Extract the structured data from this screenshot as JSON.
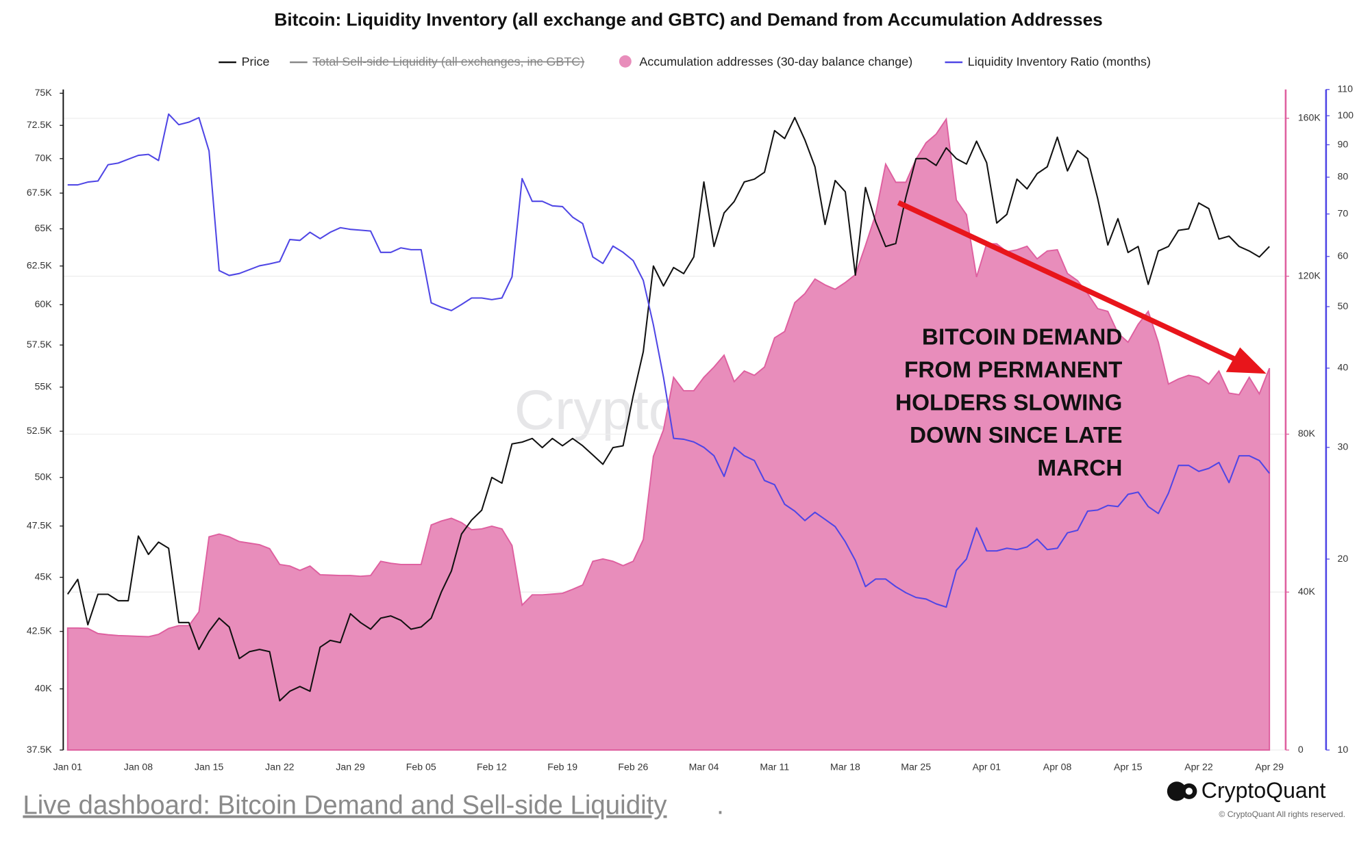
{
  "chart_data": {
    "type": "line",
    "title": "Bitcoin: Liquidity Inventory (all exchange and GBTC) and Demand from Accumulation Addresses",
    "categories": [
      "Jan 01",
      null,
      null,
      null,
      null,
      null,
      null,
      "Jan 08",
      null,
      null,
      null,
      null,
      null,
      null,
      "Jan 15",
      null,
      null,
      null,
      null,
      null,
      null,
      "Jan 22",
      null,
      null,
      null,
      null,
      null,
      null,
      "Jan 29",
      null,
      null,
      null,
      null,
      null,
      null,
      "Feb 05",
      null,
      null,
      null,
      null,
      null,
      null,
      "Feb 12",
      null,
      null,
      null,
      null,
      null,
      null,
      "Feb 19",
      null,
      null,
      null,
      null,
      null,
      null,
      "Feb 26",
      null,
      null,
      null,
      null,
      null,
      null,
      "Mar 04",
      null,
      null,
      null,
      null,
      null,
      null,
      "Mar 11",
      null,
      null,
      null,
      null,
      null,
      null,
      "Mar 18",
      null,
      null,
      null,
      null,
      null,
      null,
      "Mar 25",
      null,
      null,
      null,
      null,
      null,
      null,
      "Apr 01",
      null,
      null,
      null,
      null,
      null,
      null,
      "Apr 08",
      null,
      null,
      null,
      null,
      null,
      null,
      "Apr 15",
      null,
      null,
      null,
      null,
      null,
      null,
      "Apr 22",
      null,
      null,
      null,
      null,
      null,
      null,
      "Apr 29"
    ],
    "series": [
      {
        "name": "Price",
        "type": "line",
        "axis": "y",
        "color": "#111111",
        "values": [
          44200,
          44900,
          42800,
          44200,
          44200,
          43900,
          43900,
          47000,
          46100,
          46700,
          46400,
          42900,
          42900,
          41700,
          42500,
          43100,
          42700,
          41300,
          41600,
          41700,
          41600,
          39500,
          39900,
          40100,
          39900,
          41800,
          42100,
          42000,
          43300,
          42900,
          42600,
          43100,
          43200,
          43000,
          42600,
          42700,
          43100,
          44300,
          45300,
          47100,
          47800,
          48300,
          50000,
          49700,
          51800,
          51900,
          52100,
          51600,
          52100,
          51700,
          52100,
          51700,
          51200,
          50700,
          51600,
          51700,
          54500,
          57100,
          62500,
          61200,
          62400,
          62000,
          63100,
          68300,
          63800,
          66100,
          66900,
          68300,
          68500,
          69000,
          72100,
          71500,
          73100,
          71400,
          69400,
          65300,
          68400,
          67600,
          61900,
          67900,
          65500,
          63800,
          64000,
          67200,
          70000,
          70000,
          69500,
          70800,
          70000,
          69600,
          71300,
          69700,
          65400,
          66000,
          68500,
          67800,
          68900,
          69400,
          71600,
          69100,
          70600,
          70000,
          67100,
          63900,
          65700,
          63400,
          63800,
          61300,
          63500,
          63800,
          64900,
          65000,
          66800,
          66400,
          64300,
          64500,
          63800,
          63500,
          63100,
          63800
        ]
      },
      {
        "name": "Total Sell-side Liquidity (all exchanges, inc GBTC)",
        "color": "#888888",
        "visible": false
      },
      {
        "name": "Accumulation addresses (30-day balance change)",
        "type": "area",
        "axis": "y2",
        "color": "#de5f9f",
        "fill": "#e88dbb",
        "values": [
          30900,
          30900,
          30800,
          29500,
          29200,
          29000,
          28900,
          28800,
          28700,
          29300,
          30800,
          31500,
          31500,
          35000,
          54000,
          54700,
          54000,
          52800,
          52400,
          52000,
          51000,
          47000,
          46600,
          45500,
          46600,
          44400,
          44300,
          44200,
          44200,
          44000,
          44200,
          47800,
          47300,
          47000,
          47000,
          47000,
          57000,
          58000,
          58700,
          57600,
          55800,
          56000,
          56700,
          56000,
          51800,
          36700,
          39300,
          39300,
          39500,
          39700,
          40700,
          41800,
          47800,
          48400,
          47800,
          46700,
          47800,
          53300,
          74400,
          81100,
          94400,
          91000,
          91000,
          94400,
          97000,
          100000,
          93300,
          96000,
          94900,
          97000,
          104400,
          106000,
          113300,
          115600,
          119300,
          117800,
          116700,
          118400,
          120400,
          127800,
          135600,
          148400,
          143800,
          143800,
          149600,
          153800,
          156000,
          159800,
          139300,
          135600,
          119800,
          128200,
          128200,
          126200,
          126700,
          127600,
          124400,
          126400,
          126700,
          120700,
          118900,
          115600,
          111800,
          111100,
          105600,
          103300,
          107800,
          111100,
          103300,
          92700,
          94000,
          94900,
          94400,
          92700,
          96000,
          90400,
          90000,
          94400,
          90200,
          96700
        ]
      },
      {
        "name": "Liquidity Inventory Ratio (months)",
        "type": "line",
        "axis": "y3",
        "color": "#4f46e5",
        "values": [
          77.8,
          77.8,
          78.6,
          78.9,
          83.7,
          84.2,
          85.4,
          86.6,
          86.9,
          85.0,
          100.6,
          96.8,
          97.7,
          99.3,
          88.0,
          57.0,
          56.0,
          56.4,
          57.2,
          58.0,
          58.4,
          58.9,
          63.8,
          63.6,
          65.5,
          64.0,
          65.5,
          66.6,
          66.2,
          66.0,
          65.8,
          60.9,
          60.9,
          61.9,
          61.5,
          61.5,
          50.7,
          49.9,
          49.3,
          50.4,
          51.6,
          51.6,
          51.3,
          51.6,
          55.7,
          79.6,
          73.3,
          73.3,
          72.1,
          71.9,
          69.2,
          67.6,
          59.9,
          58.5,
          62.3,
          60.9,
          59.1,
          55.0,
          46.8,
          38.7,
          31.0,
          30.9,
          30.6,
          30.0,
          29.1,
          27.0,
          30.0,
          29.1,
          28.6,
          26.6,
          26.2,
          24.4,
          23.8,
          23.0,
          23.7,
          23.1,
          22.5,
          21.3,
          19.9,
          18.1,
          18.6,
          18.6,
          18.1,
          17.7,
          17.4,
          17.3,
          17.0,
          16.8,
          19.2,
          20.0,
          22.4,
          20.6,
          20.6,
          20.8,
          20.7,
          20.9,
          21.5,
          20.7,
          20.8,
          22.0,
          22.2,
          23.8,
          23.9,
          24.3,
          24.2,
          25.3,
          25.5,
          24.2,
          23.6,
          25.4,
          28.1,
          28.1,
          27.5,
          27.8,
          28.4,
          26.4,
          29.1,
          29.1,
          28.6,
          27.3
        ]
      }
    ],
    "ylim": [
      37500,
      75300
    ],
    "ylog": true,
    "yticks": [
      {
        "value": 37500,
        "label": "37.5K"
      },
      {
        "value": 40000,
        "label": "40K"
      },
      {
        "value": 42500,
        "label": "42.5K"
      },
      {
        "value": 45000,
        "label": "45K"
      },
      {
        "value": 47500,
        "label": "47.5K"
      },
      {
        "value": 50000,
        "label": "50K"
      },
      {
        "value": 52500,
        "label": "52.5K"
      },
      {
        "value": 55000,
        "label": "55K"
      },
      {
        "value": 57500,
        "label": "57.5K"
      },
      {
        "value": 60000,
        "label": "60K"
      },
      {
        "value": 62500,
        "label": "62.5K"
      },
      {
        "value": 65000,
        "label": "65K"
      },
      {
        "value": 67500,
        "label": "67.5K"
      },
      {
        "value": 70000,
        "label": "70K"
      },
      {
        "value": 72500,
        "label": "72.5K"
      },
      {
        "value": 75000,
        "label": "75K"
      }
    ],
    "y2lim": [
      0,
      167300
    ],
    "y2ticks": [
      0,
      {
        "value": 40000,
        "label": "40K"
      },
      {
        "value": 80000,
        "label": "80K"
      },
      {
        "value": 120000,
        "label": "120K"
      },
      {
        "value": 160000,
        "label": "160K"
      }
    ],
    "y3lim": [
      10,
      110
    ],
    "y3log": true,
    "y3ticks": [
      10,
      20,
      30,
      40,
      50,
      60,
      70,
      80,
      90,
      100,
      110
    ],
    "grid": true,
    "watermark": "CryptoQuant",
    "annotation": [
      "BITCOIN DEMAND",
      "FROM PERMANENT",
      "HOLDERS SLOWING",
      "DOWN SINCE LATE",
      "MARCH"
    ]
  },
  "footer": {
    "link": "Live dashboard: Bitcoin Demand and Sell-side Liquidity",
    "punctuation": ".",
    "brand": "CryptoQuant",
    "copyright": "© CryptoQuant All rights reserved."
  }
}
